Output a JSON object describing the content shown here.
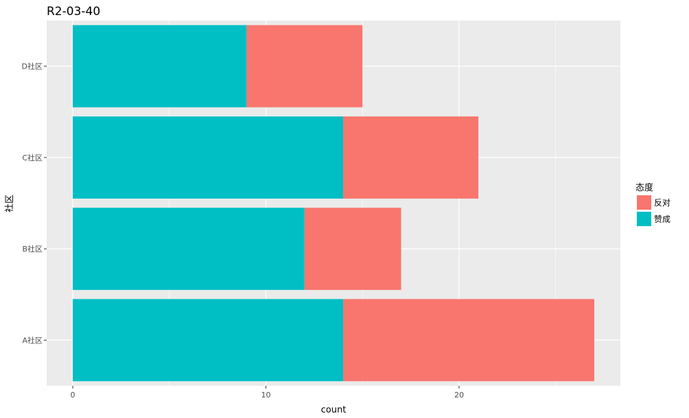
{
  "chart_data": {
    "type": "bar",
    "orientation": "horizontal",
    "stacked": true,
    "title": "R2-03-40",
    "xlabel": "count",
    "ylabel": "社区",
    "categories": [
      "A社区",
      "B社区",
      "C社区",
      "D社区"
    ],
    "series": [
      {
        "name": "反对",
        "color": "#F8766D",
        "values": [
          13,
          5,
          7,
          6
        ]
      },
      {
        "name": "赞成",
        "color": "#00BFC4",
        "values": [
          14,
          12,
          14,
          9
        ]
      }
    ],
    "xlim": [
      -1.35,
      28.35
    ],
    "xticks": [
      0,
      10,
      20
    ],
    "grid": true,
    "legend": {
      "title": "态度",
      "position": "right"
    },
    "panel_background": "#EBEBEB",
    "grid_color": "#FFFFFF"
  }
}
